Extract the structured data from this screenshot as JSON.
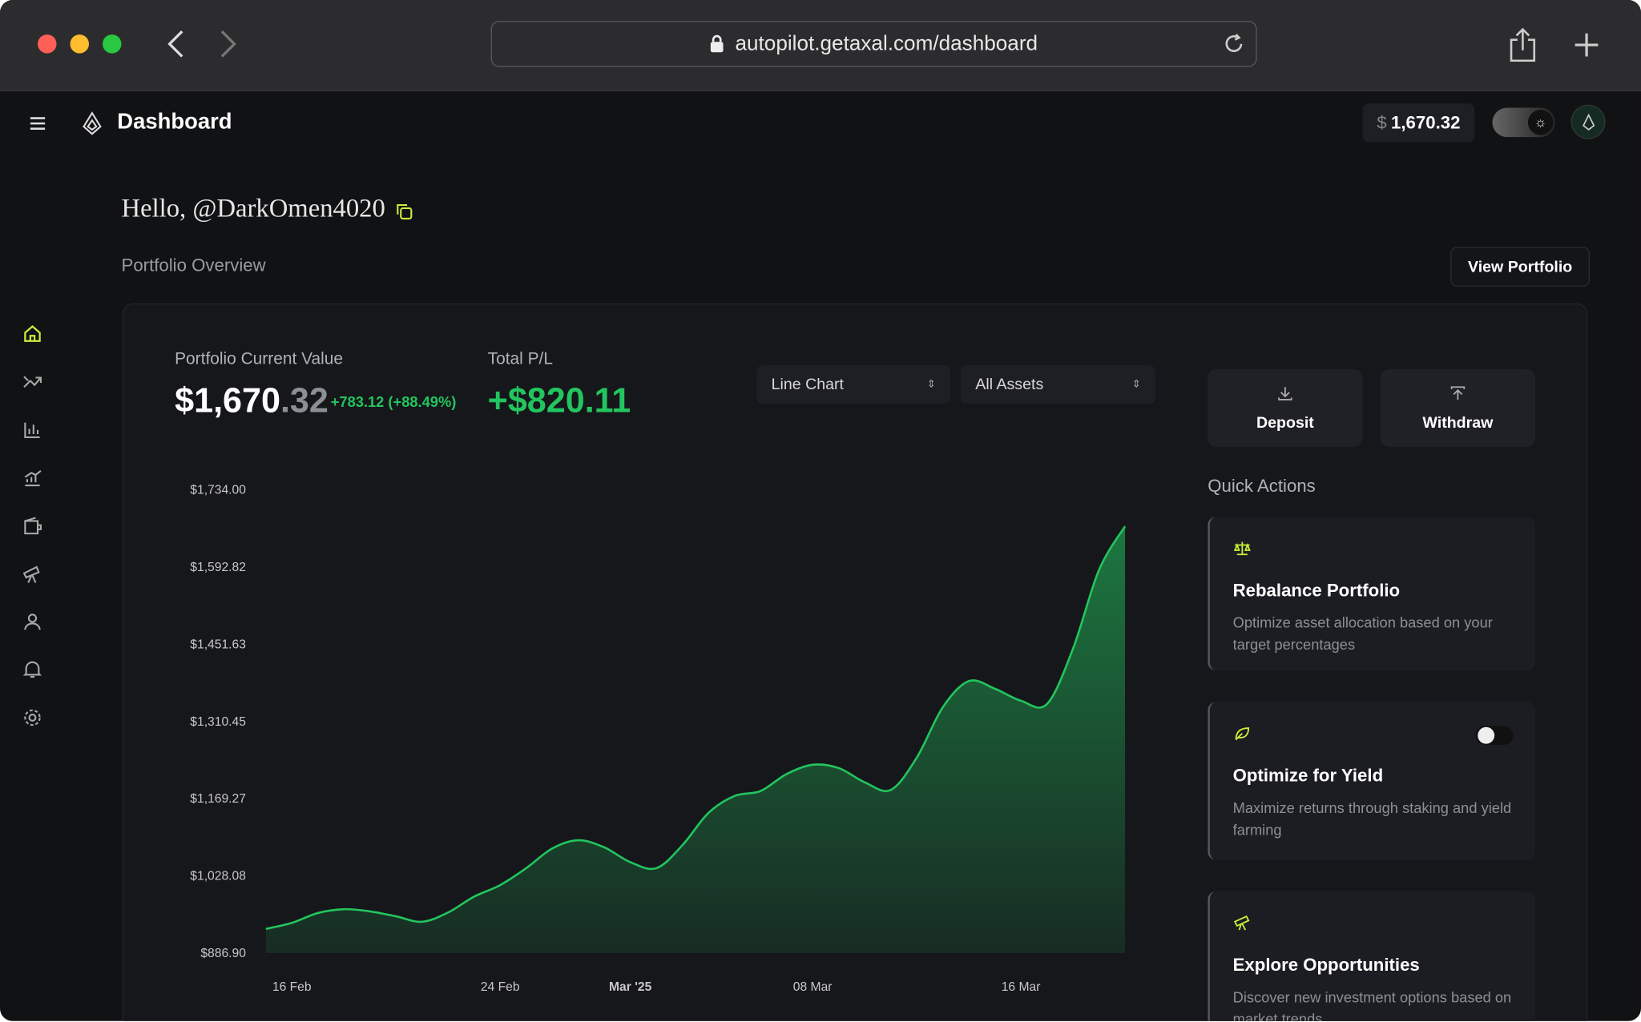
{
  "browser": {
    "url": "autopilot.getaxal.com/dashboard"
  },
  "header": {
    "title": "Dashboard",
    "balance_currency": "$",
    "balance": "1,670.32"
  },
  "greeting": "Hello, @DarkOmen4020",
  "section_title": "Portfolio Overview",
  "view_button": "View Portfolio",
  "summary": {
    "current_label": "Portfolio Current Value",
    "current_whole": "$1,670",
    "current_cents": ".32",
    "change": "+783.12 (+88.49%)",
    "pl_label": "Total P/L",
    "pl_value": "+$820.11"
  },
  "controls": {
    "chart_type": "Line Chart",
    "assets": "All Assets"
  },
  "actions": [
    "Deposit",
    "Withdraw"
  ],
  "quick_actions": {
    "title": "Quick Actions",
    "items": [
      {
        "title": "Rebalance Portfolio",
        "description": "Optimize asset allocation based on your target percentages"
      },
      {
        "title": "Optimize for Yield",
        "description": "Maximize returns through staking and yield farming"
      },
      {
        "title": "Explore Opportunities",
        "description": "Discover new investment options based on market trends"
      }
    ]
  },
  "chart_data": {
    "type": "area",
    "color": "#22c55e",
    "grid": false,
    "categories": [
      null,
      "16 Feb",
      null,
      null,
      null,
      null,
      null,
      null,
      null,
      "24 Feb",
      null,
      null,
      null,
      null,
      "Mar '25",
      null,
      null,
      null,
      null,
      null,
      null,
      "08 Mar",
      null,
      null,
      null,
      null,
      null,
      null,
      null,
      "16 Mar",
      null,
      null,
      null,
      null
    ],
    "values": [
      931,
      942,
      960,
      967,
      963,
      954,
      944,
      961,
      990,
      1011,
      1042,
      1078,
      1093,
      1080,
      1053,
      1042,
      1084,
      1143,
      1174,
      1183,
      1214,
      1231,
      1225,
      1199,
      1185,
      1244,
      1336,
      1384,
      1370,
      1348,
      1342,
      1443,
      1587,
      1667
    ],
    "ylim": [
      886.9,
      1734.0
    ],
    "yticks": [
      {
        "value": 886.9,
        "label": "$886.90"
      },
      {
        "value": 1028.08,
        "label": "$1,028.08"
      },
      {
        "value": 1169.27,
        "label": "$1,169.27"
      },
      {
        "value": 1310.45,
        "label": "$1,310.45"
      },
      {
        "value": 1451.63,
        "label": "$1,451.63"
      },
      {
        "value": 1592.82,
        "label": "$1,592.82"
      },
      {
        "value": 1734.0,
        "label": "$1,734.00"
      }
    ]
  }
}
